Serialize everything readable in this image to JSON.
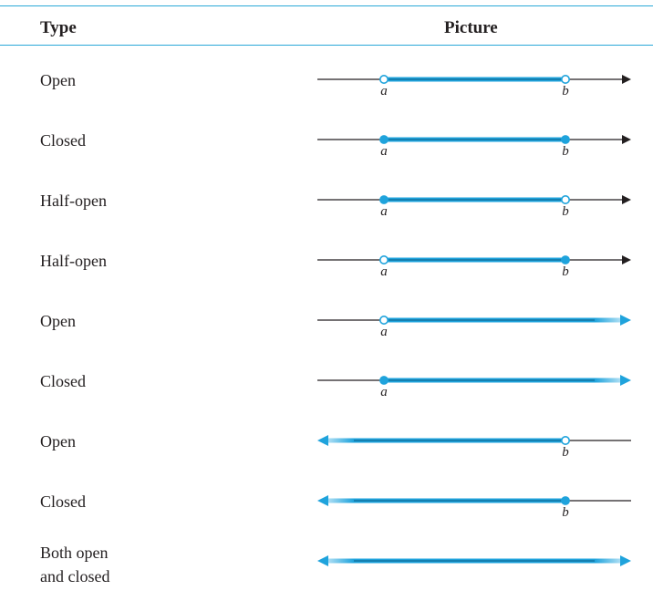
{
  "header": {
    "type_label": "Type",
    "picture_label": "Picture"
  },
  "colors": {
    "rule": "#2aa8d8",
    "highlight": "#1fa3dc",
    "axis": "#231f20"
  },
  "rows": [
    {
      "type": "Open",
      "left": "a",
      "left_end": "open",
      "right": "b",
      "right_end": "open"
    },
    {
      "type": "Closed",
      "left": "a",
      "left_end": "closed",
      "right": "b",
      "right_end": "closed"
    },
    {
      "type": "Half-open",
      "left": "a",
      "left_end": "closed",
      "right": "b",
      "right_end": "open"
    },
    {
      "type": "Half-open",
      "left": "a",
      "left_end": "open",
      "right": "b",
      "right_end": "closed"
    },
    {
      "type": "Open",
      "left": "a",
      "left_end": "open",
      "right": "",
      "right_end": "infinity"
    },
    {
      "type": "Closed",
      "left": "a",
      "left_end": "closed",
      "right": "",
      "right_end": "infinity"
    },
    {
      "type": "Open",
      "left": "",
      "left_end": "infinity",
      "right": "b",
      "right_end": "open"
    },
    {
      "type": "Closed",
      "left": "",
      "left_end": "infinity",
      "right": "b",
      "right_end": "closed"
    },
    {
      "type": "Both open\nand closed",
      "left": "",
      "left_end": "infinity",
      "right": "",
      "right_end": "infinity"
    }
  ]
}
